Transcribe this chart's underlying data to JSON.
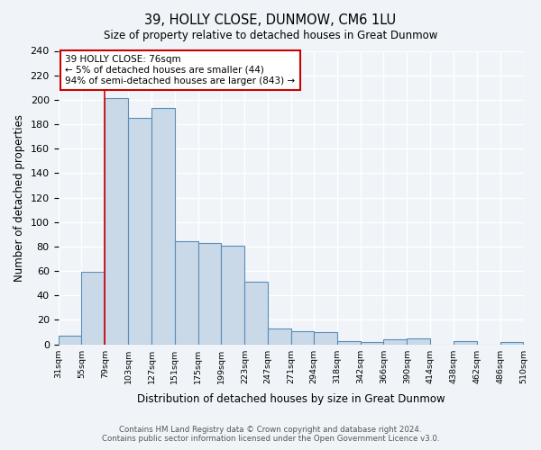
{
  "title": "39, HOLLY CLOSE, DUNMOW, CM6 1LU",
  "subtitle": "Size of property relative to detached houses in Great Dunmow",
  "xlabel": "Distribution of detached houses by size in Great Dunmow",
  "ylabel": "Number of detached properties",
  "bin_labels": [
    "31sqm",
    "55sqm",
    "79sqm",
    "103sqm",
    "127sqm",
    "151sqm",
    "175sqm",
    "199sqm",
    "223sqm",
    "247sqm",
    "271sqm",
    "294sqm",
    "318sqm",
    "342sqm",
    "366sqm",
    "390sqm",
    "414sqm",
    "438sqm",
    "462sqm",
    "486sqm",
    "510sqm"
  ],
  "bar_heights": [
    7,
    59,
    201,
    185,
    193,
    84,
    83,
    81,
    51,
    13,
    11,
    10,
    3,
    2,
    4,
    5,
    0,
    3,
    0,
    2
  ],
  "bar_color": "#c9d9e8",
  "bar_edge_color": "#5b8db8",
  "property_line_x": 79,
  "property_line_label": "39 HOLLY CLOSE: 76sqm",
  "annotation_line1": "← 5% of detached houses are smaller (44)",
  "annotation_line2": "94% of semi-detached houses are larger (843) →",
  "annotation_box_color": "#ffffff",
  "annotation_box_edge_color": "#cc0000",
  "vline_color": "#cc0000",
  "ylim": [
    0,
    240
  ],
  "yticks": [
    0,
    20,
    40,
    60,
    80,
    100,
    120,
    140,
    160,
    180,
    200,
    220,
    240
  ],
  "footer1": "Contains HM Land Registry data © Crown copyright and database right 2024.",
  "footer2": "Contains public sector information licensed under the Open Government Licence v3.0.",
  "background_color": "#f0f4f8",
  "grid_color": "#ffffff"
}
